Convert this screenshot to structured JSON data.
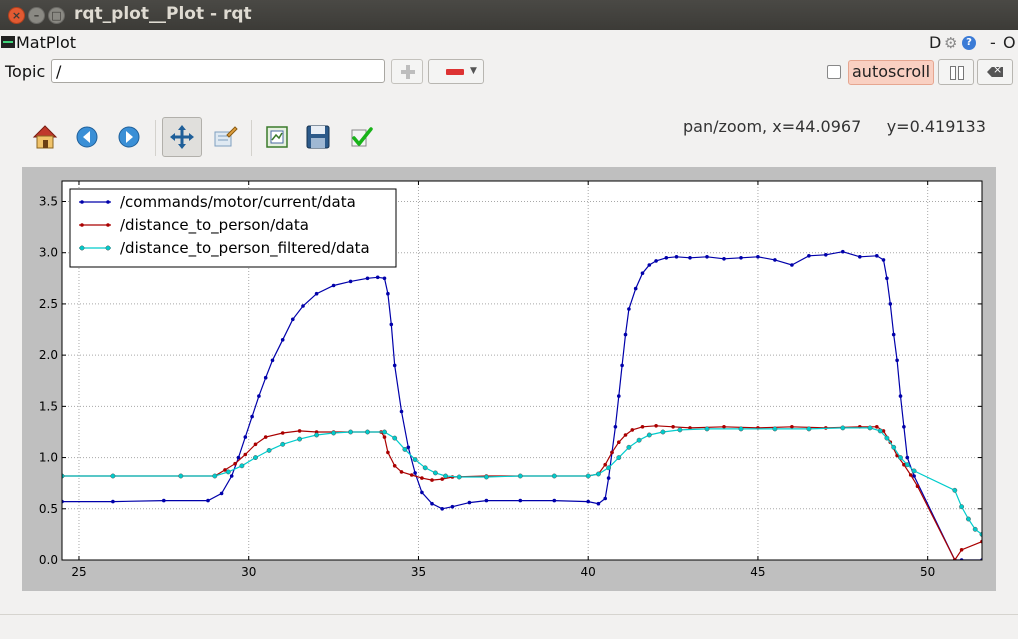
{
  "window": {
    "title": "rqt_plot__Plot - rqt",
    "close_glyph": "×",
    "min_glyph": "–",
    "max_glyph": "□"
  },
  "plugin": {
    "name": "MatPlot",
    "header_d": "D",
    "header_help": "?",
    "header_min": "-",
    "header_o": "O"
  },
  "topic": {
    "label": "Topic",
    "value": "/"
  },
  "autoscroll": {
    "label": "autoscroll",
    "checked": false
  },
  "toolbar": {
    "items": [
      "home-icon",
      "back-arrow-icon",
      "forward-arrow-icon",
      "pan-icon",
      "zoom-icon",
      "subplots-icon",
      "save-icon",
      "edit-check-icon"
    ],
    "status": "pan/zoom, x=44.0967     y=0.419133"
  },
  "chart_data": {
    "type": "line",
    "xlim": [
      24.5,
      51.6
    ],
    "ylim": [
      0.0,
      3.7
    ],
    "x_ticks": [
      25,
      30,
      35,
      40,
      45,
      50
    ],
    "y_ticks": [
      0.0,
      0.5,
      1.0,
      1.5,
      2.0,
      2.5,
      3.0,
      3.5
    ],
    "x_tick_labels": [
      "25",
      "30",
      "35",
      "40",
      "45",
      "50"
    ],
    "y_tick_labels": [
      "0.0",
      "0.5",
      "1.0",
      "1.5",
      "2.0",
      "2.5",
      "3.0",
      "3.5"
    ],
    "grid": true,
    "legend_position": "top-left",
    "series": [
      {
        "name": "/commands/motor/current/data",
        "color": "#0000aa",
        "marker": "dot",
        "x": [
          24.5,
          26,
          27.5,
          28.8,
          29.2,
          29.5,
          29.7,
          29.9,
          30.1,
          30.3,
          30.5,
          30.7,
          31.0,
          31.3,
          31.6,
          32.0,
          32.5,
          33.0,
          33.5,
          33.8,
          34.0,
          34.1,
          34.2,
          34.3,
          34.5,
          34.7,
          34.9,
          35.1,
          35.4,
          35.7,
          36.0,
          36.5,
          37.0,
          38.0,
          39.0,
          40.0,
          40.3,
          40.5,
          40.6,
          40.7,
          40.8,
          40.9,
          41.0,
          41.1,
          41.2,
          41.4,
          41.6,
          41.8,
          42.0,
          42.3,
          42.6,
          43.0,
          43.5,
          44.0,
          44.5,
          45.0,
          45.5,
          46.0,
          46.5,
          47.0,
          47.5,
          48.0,
          48.5,
          48.7,
          48.8,
          48.9,
          49.0,
          49.1,
          49.2,
          49.3,
          49.4,
          49.6,
          50.8,
          51.0,
          51.6
        ],
        "y": [
          0.57,
          0.57,
          0.58,
          0.58,
          0.65,
          0.82,
          1.0,
          1.2,
          1.4,
          1.6,
          1.78,
          1.95,
          2.15,
          2.35,
          2.48,
          2.6,
          2.68,
          2.72,
          2.75,
          2.76,
          2.75,
          2.6,
          2.3,
          1.9,
          1.45,
          1.1,
          0.85,
          0.66,
          0.55,
          0.5,
          0.52,
          0.56,
          0.58,
          0.58,
          0.58,
          0.57,
          0.55,
          0.6,
          0.8,
          1.05,
          1.3,
          1.6,
          1.9,
          2.2,
          2.45,
          2.65,
          2.8,
          2.88,
          2.92,
          2.95,
          2.96,
          2.95,
          2.96,
          2.94,
          2.95,
          2.96,
          2.93,
          2.88,
          2.97,
          2.98,
          3.01,
          2.96,
          2.97,
          2.93,
          2.75,
          2.5,
          2.2,
          1.95,
          1.6,
          1.3,
          1.0,
          0.82,
          0.0,
          0.0,
          0.0
        ]
      },
      {
        "name": "/distance_to_person/data",
        "color": "#aa0000",
        "marker": "dot",
        "x": [
          24.5,
          26,
          28,
          29.0,
          29.3,
          29.6,
          29.9,
          30.2,
          30.5,
          31.0,
          31.5,
          32.0,
          32.5,
          33.0,
          33.5,
          33.9,
          34.0,
          34.1,
          34.3,
          34.5,
          34.8,
          35.1,
          35.4,
          35.7,
          36.0,
          37.0,
          38.0,
          39.0,
          40.0,
          40.3,
          40.5,
          40.7,
          40.9,
          41.1,
          41.3,
          41.6,
          42.0,
          42.5,
          43.0,
          44.0,
          45.0,
          46.0,
          47.0,
          48.0,
          48.5,
          48.7,
          48.9,
          49.1,
          49.3,
          49.5,
          49.7,
          50.8,
          51.0,
          51.6
        ],
        "y": [
          0.82,
          0.82,
          0.82,
          0.82,
          0.88,
          0.94,
          1.03,
          1.13,
          1.2,
          1.24,
          1.26,
          1.25,
          1.25,
          1.25,
          1.25,
          1.25,
          1.2,
          1.05,
          0.92,
          0.86,
          0.83,
          0.8,
          0.78,
          0.79,
          0.81,
          0.82,
          0.82,
          0.82,
          0.82,
          0.84,
          0.93,
          1.05,
          1.15,
          1.22,
          1.27,
          1.3,
          1.31,
          1.3,
          1.29,
          1.3,
          1.29,
          1.3,
          1.29,
          1.3,
          1.3,
          1.26,
          1.15,
          1.02,
          0.93,
          0.83,
          0.72,
          0.0,
          0.1,
          0.18
        ]
      },
      {
        "name": "/distance_to_person_filtered/data",
        "color": "#00cccc",
        "marker": "circle",
        "x": [
          24.5,
          26,
          28,
          29.0,
          29.4,
          29.8,
          30.2,
          30.6,
          31.0,
          31.5,
          32.0,
          32.5,
          33.0,
          33.5,
          34.0,
          34.3,
          34.6,
          34.9,
          35.2,
          35.5,
          35.8,
          36.2,
          37.0,
          38.0,
          39.0,
          40.0,
          40.3,
          40.6,
          40.9,
          41.2,
          41.5,
          41.8,
          42.2,
          42.7,
          43.5,
          44.5,
          45.5,
          46.5,
          47.5,
          48.3,
          48.6,
          48.8,
          49.0,
          49.2,
          49.4,
          49.6,
          50.8,
          51.0,
          51.2,
          51.4,
          51.6
        ],
        "y": [
          0.82,
          0.82,
          0.82,
          0.82,
          0.86,
          0.92,
          1.0,
          1.07,
          1.13,
          1.18,
          1.22,
          1.24,
          1.25,
          1.25,
          1.25,
          1.19,
          1.08,
          0.98,
          0.9,
          0.85,
          0.82,
          0.81,
          0.81,
          0.82,
          0.82,
          0.82,
          0.84,
          0.9,
          1.0,
          1.1,
          1.17,
          1.22,
          1.25,
          1.27,
          1.28,
          1.28,
          1.28,
          1.28,
          1.29,
          1.29,
          1.26,
          1.19,
          1.1,
          1.0,
          0.93,
          0.87,
          0.68,
          0.52,
          0.4,
          0.3,
          0.25
        ]
      }
    ]
  }
}
